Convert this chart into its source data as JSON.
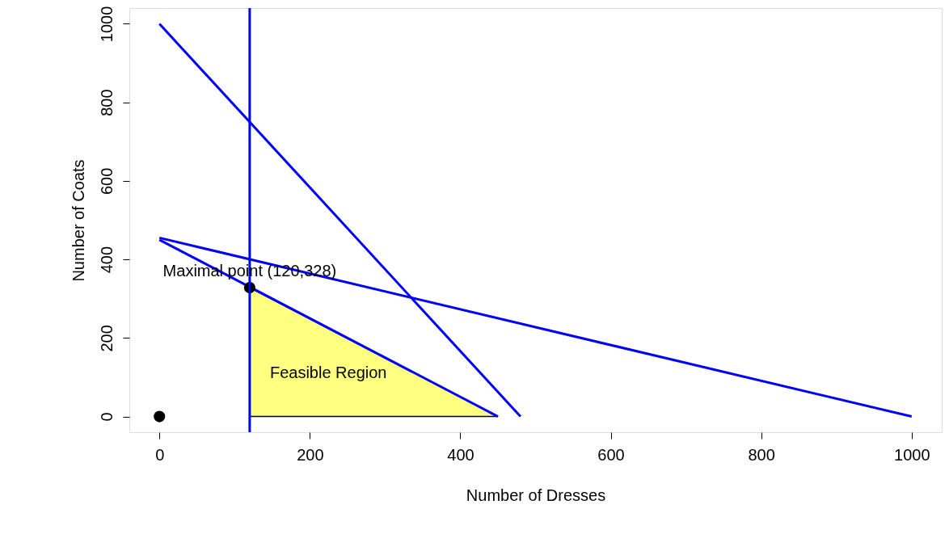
{
  "chart_data": {
    "type": "line",
    "xlabel": "Number of Dresses",
    "ylabel": "Number of Coats",
    "xlim": [
      -40,
      1040
    ],
    "ylim": [
      -40,
      1040
    ],
    "xticks": [
      0,
      200,
      400,
      600,
      800,
      1000
    ],
    "yticks": [
      0,
      200,
      400,
      600,
      800,
      1000
    ],
    "line_style": "solid",
    "series": [
      {
        "type": "area",
        "color": "#ffff80",
        "x": [
          120,
          450
        ],
        "values": [
          328,
          0
        ]
      },
      {
        "color": "#0000ff",
        "x": [
          0,
          480
        ],
        "values": [
          1000,
          0
        ]
      },
      {
        "color": "#0000ff",
        "x": [
          0,
          1000
        ],
        "values": [
          455,
          0
        ]
      },
      {
        "color": "#0000ff",
        "x": [
          0,
          450
        ],
        "values": [
          450,
          0
        ]
      },
      {
        "type": "scatter",
        "color": "#000000",
        "marker": "circle",
        "x": [
          0
        ],
        "values": [
          0
        ]
      },
      {
        "type": "scatter",
        "color": "#000000",
        "marker": "circle",
        "x": [
          120
        ],
        "values": [
          328
        ]
      }
    ],
    "ref_lines": [
      {
        "axis": "x",
        "value": 120,
        "color": "#0000ff"
      }
    ],
    "annotations": [
      {
        "text": "Maximal point (120,328)",
        "x": 120,
        "y": 328
      },
      "Feasible Region"
    ]
  }
}
